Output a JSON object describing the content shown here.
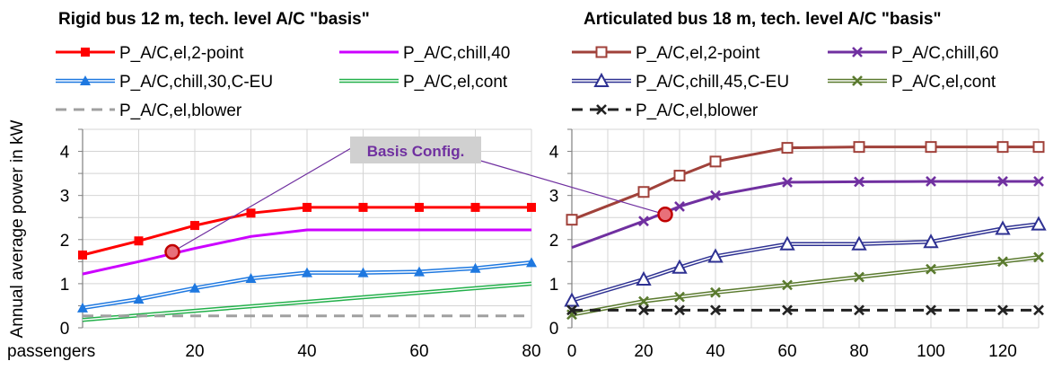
{
  "ylabel": "Annual average power in kW",
  "xlabel_left": "passengers",
  "annotation": "Basis Config.",
  "chart_data": [
    {
      "type": "line",
      "title": "Rigid bus 12 m, tech. level A/C \"basis\"",
      "xlim": [
        0,
        80
      ],
      "ylim": [
        0,
        4.5
      ],
      "xticks": [
        20,
        40,
        60,
        80
      ],
      "yticks": [
        0,
        1,
        2,
        3,
        4
      ],
      "grid": true,
      "basis_point": {
        "x": 16,
        "y": 1.72
      },
      "series": [
        {
          "name": "P_A/C,el,2-point",
          "color": "#ff0000",
          "style": "solid",
          "marker": "square-filled",
          "x": [
            0,
            10,
            20,
            30,
            40,
            50,
            60,
            70,
            80
          ],
          "y": [
            1.65,
            1.97,
            2.32,
            2.6,
            2.73,
            2.73,
            2.73,
            2.73,
            2.73
          ]
        },
        {
          "name": "P_A/C,chill,40",
          "color": "#cc00ff",
          "style": "solid",
          "marker": "none",
          "x": [
            0,
            10,
            20,
            30,
            40,
            50,
            60,
            70,
            80
          ],
          "y": [
            1.22,
            1.5,
            1.8,
            2.07,
            2.22,
            2.22,
            2.22,
            2.22,
            2.22
          ]
        },
        {
          "name": "P_A/C,chill,30,C-EU",
          "color": "#1e78e0",
          "style": "double",
          "marker": "triangle-filled",
          "x": [
            0,
            10,
            20,
            30,
            40,
            50,
            60,
            70,
            80
          ],
          "y": [
            0.45,
            0.65,
            0.9,
            1.12,
            1.25,
            1.25,
            1.27,
            1.35,
            1.48
          ]
        },
        {
          "name": "P_A/C,el,cont",
          "color": "#22b04a",
          "style": "double",
          "marker": "none",
          "x": [
            0,
            80
          ],
          "y": [
            0.18,
            1.0
          ]
        },
        {
          "name": "P_A/C,el,blower",
          "color": "#a0a0a0",
          "style": "dashed",
          "marker": "none",
          "x": [
            0,
            80
          ],
          "y": [
            0.27,
            0.27
          ]
        }
      ]
    },
    {
      "type": "line",
      "title": "Articulated bus 18 m, tech. level A/C \"basis\"",
      "xlim": [
        0,
        130
      ],
      "ylim": [
        0,
        4.5
      ],
      "xticks": [
        0,
        20,
        40,
        60,
        80,
        100,
        120
      ],
      "yticks": [
        0,
        1,
        2,
        3,
        4
      ],
      "grid": true,
      "basis_point": {
        "x": 26,
        "y": 2.57
      },
      "series": [
        {
          "name": "P_A/C,el,2-point",
          "color": "#a0413a",
          "style": "solid",
          "marker": "square-open",
          "x": [
            0,
            20,
            30,
            40,
            60,
            80,
            100,
            120,
            130
          ],
          "y": [
            2.45,
            3.08,
            3.45,
            3.77,
            4.08,
            4.1,
            4.1,
            4.1,
            4.1
          ]
        },
        {
          "name": "P_A/C,chill,60",
          "color": "#7030a0",
          "style": "solid",
          "marker": "x",
          "x": [
            0,
            20,
            30,
            40,
            60,
            80,
            100,
            120,
            130
          ],
          "y": [
            1.82,
            2.42,
            2.75,
            3.0,
            3.3,
            3.31,
            3.32,
            3.32,
            3.32
          ]
        },
        {
          "name": "P_A/C,chill,45,C-EU",
          "color": "#2e3192",
          "style": "double",
          "marker": "triangle-open",
          "x": [
            0,
            20,
            30,
            40,
            60,
            80,
            100,
            120,
            130
          ],
          "y": [
            0.62,
            1.1,
            1.37,
            1.62,
            1.9,
            1.9,
            1.95,
            2.25,
            2.35
          ]
        },
        {
          "name": "P_A/C,el,cont",
          "color": "#5a7a2e",
          "style": "double",
          "marker": "x",
          "x": [
            0,
            20,
            30,
            40,
            60,
            80,
            100,
            120,
            130
          ],
          "y": [
            0.3,
            0.6,
            0.7,
            0.8,
            0.97,
            1.15,
            1.33,
            1.5,
            1.6
          ]
        },
        {
          "name": "P_A/C,el,blower",
          "color": "#222222",
          "style": "dashed",
          "marker": "x",
          "x": [
            0,
            20,
            30,
            40,
            60,
            80,
            100,
            120,
            130
          ],
          "y": [
            0.4,
            0.4,
            0.4,
            0.4,
            0.4,
            0.4,
            0.4,
            0.4,
            0.4
          ]
        }
      ]
    }
  ]
}
